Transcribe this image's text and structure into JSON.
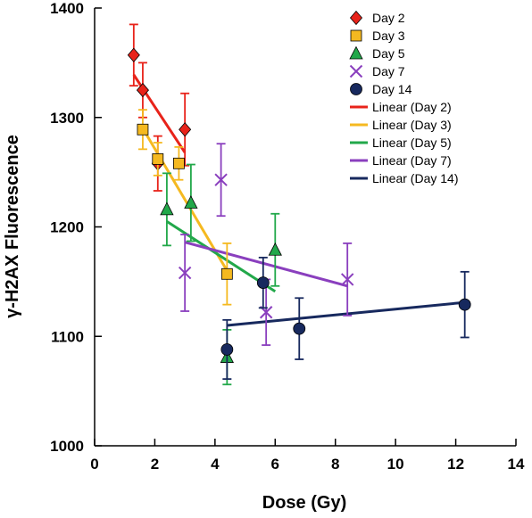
{
  "chart_data": {
    "type": "scatter",
    "xlabel": "Dose (Gy)",
    "ylabel": "γ-H2AX Fluorescence",
    "xlim": [
      0,
      14
    ],
    "ylim": [
      1000,
      1400
    ],
    "xticks": [
      0,
      2,
      4,
      6,
      8,
      10,
      12,
      14
    ],
    "yticks": [
      1000,
      1100,
      1200,
      1300,
      1400
    ],
    "legend_position": "top-right",
    "series": [
      {
        "name": "Day 2",
        "marker": "diamond",
        "color": "#e8231a",
        "x": [
          1.3,
          1.6,
          2.1,
          3.0
        ],
        "y": [
          1357,
          1325,
          1258,
          1289
        ],
        "err": [
          28,
          25,
          25,
          33
        ]
      },
      {
        "name": "Day 3",
        "marker": "square",
        "color": "#f5b920",
        "x": [
          1.6,
          2.1,
          2.8,
          4.4
        ],
        "y": [
          1289,
          1262,
          1258,
          1157
        ],
        "err": [
          18,
          15,
          15,
          28
        ]
      },
      {
        "name": "Day 5",
        "marker": "triangle",
        "color": "#22a84a",
        "x": [
          2.4,
          3.2,
          4.4,
          6.0
        ],
        "y": [
          1216,
          1222,
          1081,
          1179
        ],
        "err": [
          33,
          35,
          25,
          33
        ]
      },
      {
        "name": "Day 7",
        "marker": "x",
        "color": "#8a3fbe",
        "x": [
          3.0,
          4.2,
          5.7,
          8.4
        ],
        "y": [
          1158,
          1243,
          1122,
          1152
        ],
        "err": [
          35,
          33,
          30,
          33
        ]
      },
      {
        "name": "Day 14",
        "marker": "circle",
        "color": "#17295e",
        "x": [
          4.4,
          5.6,
          6.8,
          12.3
        ],
        "y": [
          1088,
          1149,
          1107,
          1129
        ],
        "err": [
          27,
          23,
          28,
          30
        ]
      }
    ],
    "trendlines": [
      {
        "name": "Linear (Day 2)",
        "color": "#e8231a",
        "x": [
          1.3,
          3.0
        ],
        "y": [
          1339,
          1268
        ]
      },
      {
        "name": "Linear (Day 3)",
        "color": "#f5b920",
        "x": [
          1.6,
          4.4
        ],
        "y": [
          1290,
          1160
        ]
      },
      {
        "name": "Linear (Day 5)",
        "color": "#22a84a",
        "x": [
          2.4,
          6.0
        ],
        "y": [
          1205,
          1141
        ]
      },
      {
        "name": "Linear (Day 7)",
        "color": "#8a3fbe",
        "x": [
          3.0,
          8.4
        ],
        "y": [
          1186,
          1146
        ]
      },
      {
        "name": "Linear (Day 14)",
        "color": "#17295e",
        "x": [
          4.4,
          12.3
        ],
        "y": [
          1110,
          1131
        ]
      }
    ]
  }
}
